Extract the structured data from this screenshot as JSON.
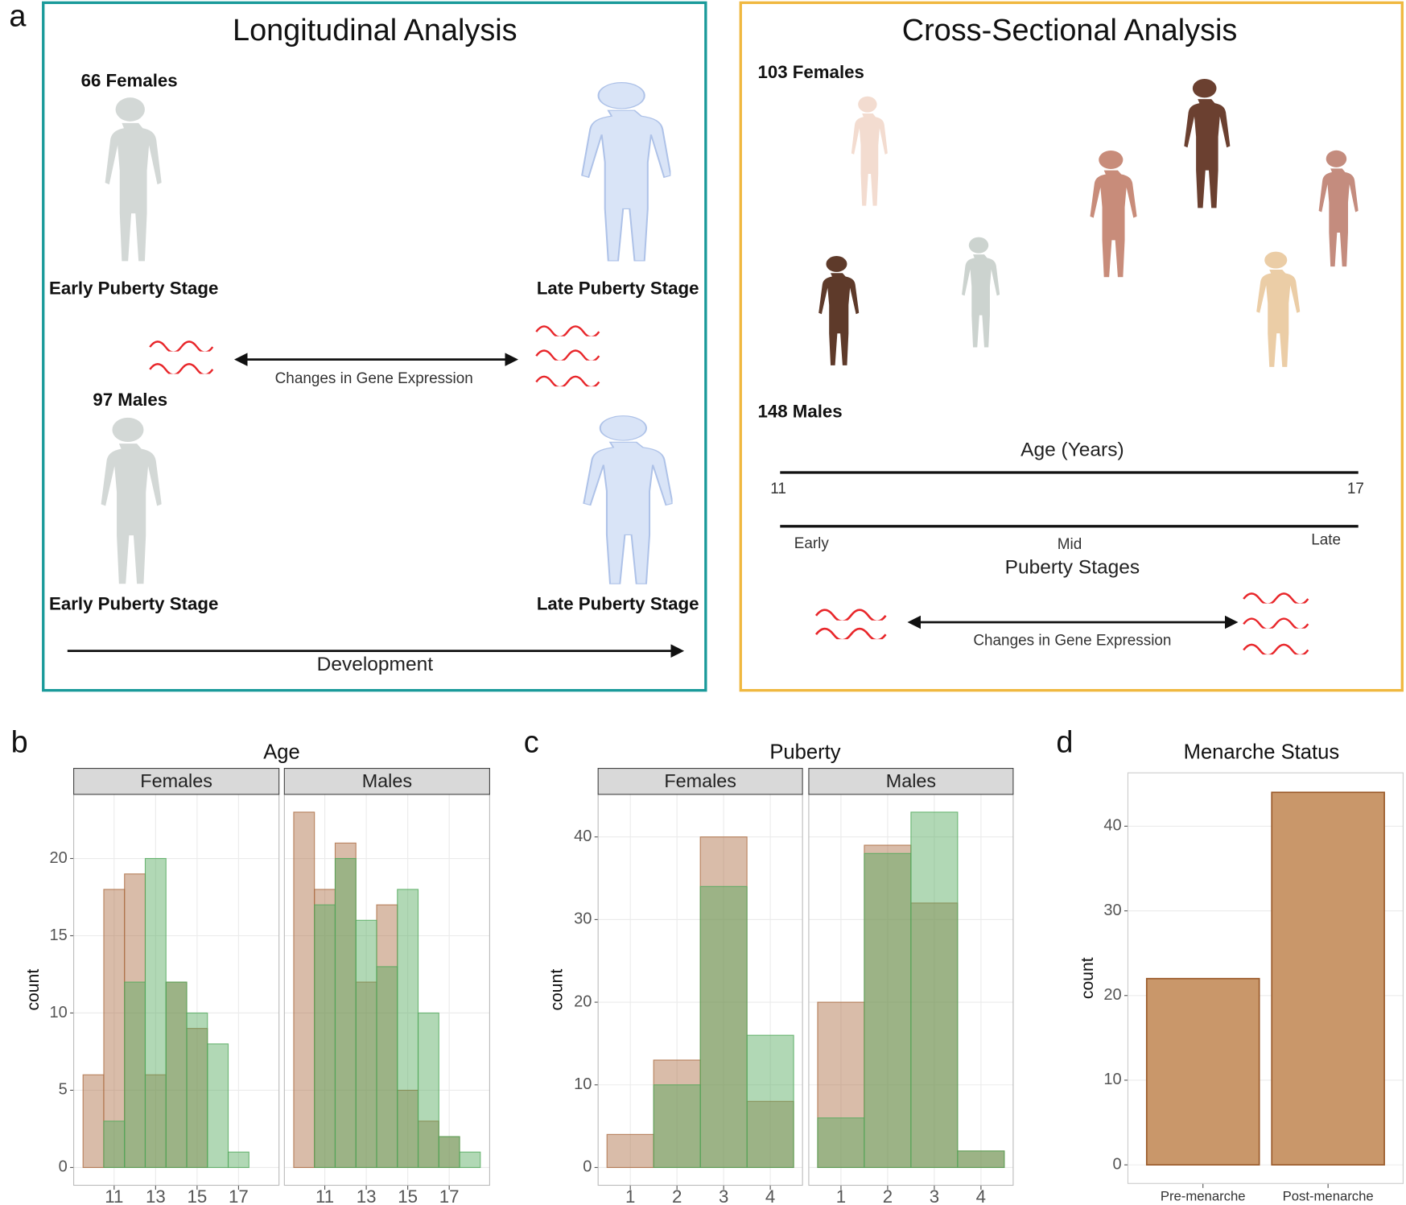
{
  "diagram": {
    "panel_label": "a",
    "longitudinal": {
      "title": "Longitudinal Analysis",
      "females": "66 Females",
      "males": "97 Males",
      "early_stage": [
        "Early Puberty Stage",
        "Early Puberty Stage"
      ],
      "late_stage": [
        "Late Puberty Stage",
        "Late Puberty Stage"
      ],
      "changes": "Changes in Gene Expression",
      "development": "Development"
    },
    "cross_sectional": {
      "title": "Cross-Sectional Analysis",
      "females": "103 Females",
      "males": "148 Males",
      "age_axis": "Age (Years)",
      "age_start": "11",
      "age_end": "17",
      "early": "Early",
      "mid": "Mid",
      "late": "Late",
      "stages": "Puberty Stages",
      "changes": "Changes in Gene Expression"
    }
  },
  "chart_data": [
    {
      "type": "histogram",
      "panel_label": "b",
      "title": "Age",
      "ylabel": "count",
      "bins": [
        9.5,
        10.5,
        11.5,
        12.5,
        13.5,
        14.5,
        15.5,
        16.5,
        17.5,
        18.5
      ],
      "xlim": [
        9.05,
        18.95
      ],
      "xticks": [
        11,
        13,
        15,
        17
      ],
      "ylim": [
        -1.15,
        24.15
      ],
      "yticks": [
        0,
        5,
        10,
        15,
        20
      ],
      "fill_opacity": 0.45,
      "facets": [
        {
          "name": "Females",
          "series": [
            {
              "color": "#ab6b41",
              "values": [
                6,
                18,
                19,
                6,
                12,
                9,
                0,
                0,
                0
              ]
            },
            {
              "color": "#51a95b",
              "values": [
                0,
                3,
                12,
                20,
                12,
                10,
                8,
                1,
                0
              ]
            }
          ]
        },
        {
          "name": "Males",
          "series": [
            {
              "color": "#ab6b41",
              "values": [
                23,
                18,
                21,
                12,
                17,
                5,
                3,
                2,
                0
              ]
            },
            {
              "color": "#51a95b",
              "values": [
                0,
                17,
                20,
                16,
                13,
                18,
                10,
                2,
                1
              ]
            }
          ]
        }
      ]
    },
    {
      "type": "histogram",
      "panel_label": "c",
      "title": "Puberty",
      "ylabel": "count",
      "bins": [
        0.5,
        1.5,
        2.5,
        3.5,
        4.5
      ],
      "xlim": [
        0.31,
        4.69
      ],
      "xticks": [
        1,
        2,
        3,
        4
      ],
      "ylim": [
        -2.15,
        45.15
      ],
      "yticks": [
        0,
        10,
        20,
        30,
        40
      ],
      "fill_opacity": 0.45,
      "facets": [
        {
          "name": "Females",
          "series": [
            {
              "color": "#ab6b41",
              "values": [
                4,
                13,
                40,
                8
              ]
            },
            {
              "color": "#51a95b",
              "values": [
                0,
                10,
                34,
                16
              ]
            }
          ]
        },
        {
          "name": "Males",
          "series": [
            {
              "color": "#ab6b41",
              "values": [
                20,
                39,
                32,
                2
              ]
            },
            {
              "color": "#51a95b",
              "values": [
                6,
                38,
                43,
                2
              ]
            }
          ]
        }
      ]
    },
    {
      "type": "bar",
      "panel_label": "d",
      "title": "Menarche Status",
      "ylabel": "count",
      "categories": [
        "Pre-menarche",
        "Post-menarche"
      ],
      "values": [
        22,
        44
      ],
      "color": "#c9976a",
      "edge_color": "#9a5a2a",
      "ylim": [
        -2.2,
        46.3
      ],
      "yticks": [
        0,
        10,
        20,
        30,
        40
      ]
    }
  ]
}
